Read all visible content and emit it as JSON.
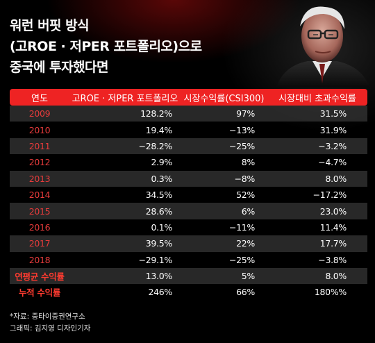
{
  "headline": {
    "line1": "워런 버핏 방식",
    "line2": "(고ROE · 저PER 포트폴리오)으로",
    "line3": "중국에 투자했다면"
  },
  "table": {
    "headers": [
      "연도",
      "고ROE · 저PER 포트폴리오",
      "시장수익률(CSI300)",
      "시장대비 초과수익률"
    ],
    "rows": [
      {
        "year": "2009",
        "portfolio": "128.2%",
        "market": "97%",
        "excess": "31.5%"
      },
      {
        "year": "2010",
        "portfolio": "19.4%",
        "market": "−13%",
        "excess": "31.9%"
      },
      {
        "year": "2011",
        "portfolio": "−28.2%",
        "market": "−25%",
        "excess": "−3.2%"
      },
      {
        "year": "2012",
        "portfolio": "2.9%",
        "market": "8%",
        "excess": "−4.7%"
      },
      {
        "year": "2013",
        "portfolio": "0.3%",
        "market": "−8%",
        "excess": "8.0%"
      },
      {
        "year": "2014",
        "portfolio": "34.5%",
        "market": "52%",
        "excess": "−17.2%"
      },
      {
        "year": "2015",
        "portfolio": "28.6%",
        "market": "6%",
        "excess": "23.0%"
      },
      {
        "year": "2016",
        "portfolio": "0.1%",
        "market": "−11%",
        "excess": "11.4%"
      },
      {
        "year": "2017",
        "portfolio": "39.5%",
        "market": "22%",
        "excess": "17.7%"
      },
      {
        "year": "2018",
        "portfolio": "−29.1%",
        "market": "−25%",
        "excess": "−3.8%"
      },
      {
        "year": "연평균 수익률",
        "portfolio": "13.0%",
        "market": "5%",
        "excess": "8.0%"
      },
      {
        "year": "누적 수익률",
        "portfolio": "246%",
        "market": "66%",
        "excess": "180%%"
      }
    ]
  },
  "notes": {
    "source": "*자료: 중타이증권연구소",
    "graphic": "그래픽: 김지영 디자인기자"
  },
  "colors": {
    "accent": "#ee2323",
    "year_text": "#e83b3b",
    "background": "#000000"
  },
  "icons": {
    "portrait": "businessman-photo"
  }
}
